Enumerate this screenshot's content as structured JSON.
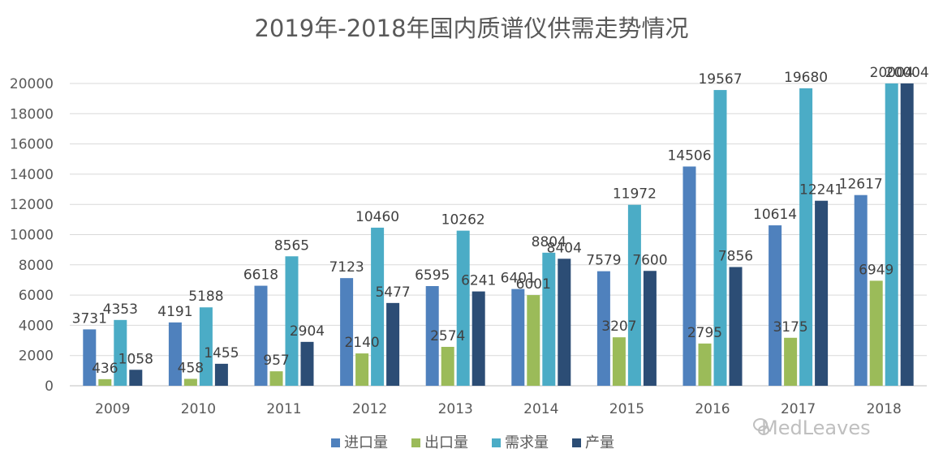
{
  "chart_data": {
    "type": "bar",
    "title": "2019年-2018年国内质谱仪供需走势情况",
    "xlabel": "",
    "ylabel": "",
    "ylim": [
      0,
      20000
    ],
    "yticks": [
      0,
      2000,
      4000,
      6000,
      8000,
      10000,
      12000,
      14000,
      16000,
      18000,
      20000
    ],
    "grid": true,
    "legend_position": "bottom",
    "categories": [
      "2009",
      "2010",
      "2011",
      "2012",
      "2013",
      "2014",
      "2015",
      "2016",
      "2017",
      "2018"
    ],
    "series": [
      {
        "name": "进口量",
        "color": "#4f81bd",
        "values": [
          3731,
          4191,
          6618,
          7123,
          6595,
          6401,
          7579,
          14506,
          10614,
          12617
        ]
      },
      {
        "name": "出口量",
        "color": "#9bbb59",
        "values": [
          436,
          458,
          957,
          2140,
          2574,
          6001,
          3207,
          2795,
          3175,
          6949
        ]
      },
      {
        "name": "需求量",
        "color": "#4bacc6",
        "values": [
          4353,
          5188,
          8565,
          10460,
          10262,
          8804,
          11972,
          19567,
          19680,
          20004
        ]
      },
      {
        "name": "产量",
        "color": "#2c4d75",
        "values": [
          1058,
          1455,
          2904,
          5477,
          6241,
          8404,
          7600,
          7856,
          12241,
          20004
        ]
      }
    ]
  },
  "watermark": {
    "text": "MedLeaves",
    "icon": "wechat-icon"
  }
}
